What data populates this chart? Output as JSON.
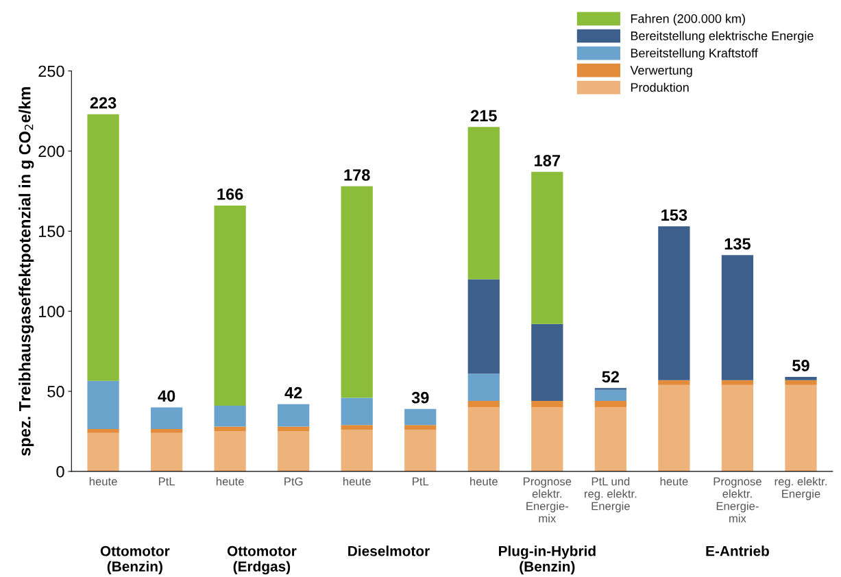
{
  "chart_data": {
    "type": "bar",
    "stacked": true,
    "ylabel": "spez. Treibhausgaseffektpotenzial in g CO$_{2}$e/km",
    "categories": [
      "heute",
      "PtL",
      "heute",
      "PtG",
      "heute",
      "PtL",
      "heute",
      "Prognose\nelektr.\nEnergie-\nmix",
      "PtL und\nreg. elektr.\nEnergie",
      "heute",
      "Prognose\nelektr.\nEnergie-\nmix",
      "reg. elektr.\nEnergie"
    ],
    "series": [
      {
        "name": "Produktion",
        "color": "#eeb37a",
        "values": [
          24,
          24,
          25,
          25,
          26,
          26,
          40,
          40,
          40,
          54,
          54,
          54
        ]
      },
      {
        "name": "Verwertung",
        "color": "#e38c3a",
        "values": [
          2.5,
          2.5,
          3,
          3,
          3,
          3,
          4,
          4,
          4,
          3,
          3,
          3
        ]
      },
      {
        "name": "Bereitstellung Kraftstoff",
        "color": "#6aa3cc",
        "values": [
          30,
          13.5,
          13,
          14,
          17,
          10,
          17,
          null,
          7,
          null,
          null,
          null
        ]
      },
      {
        "name": "Bereitstellung elektrische Energie",
        "color": "#3d5f8c",
        "values": [
          null,
          null,
          null,
          null,
          null,
          null,
          59,
          48,
          1,
          96,
          78,
          2
        ]
      },
      {
        "name": "Fahren (200.000 km)",
        "color": "#8cbd3a",
        "values": [
          166.5,
          null,
          125,
          null,
          132,
          null,
          95,
          95,
          null,
          null,
          null,
          null
        ]
      }
    ],
    "totals": [
      "223",
      "40",
      "166",
      "42",
      "178",
      "39",
      "215",
      "187",
      "52",
      "153",
      "135",
      "59"
    ],
    "annotations": [
      "Ottomotor\n(Benzin)",
      "Ottomotor\n(Erdgas)",
      "Dieselmotor",
      "Plug-in-Hybrid\n(Benzin)",
      "E-Antrieb"
    ],
    "ylim": [
      0,
      250
    ],
    "yticks": [
      0,
      50,
      100,
      150,
      200,
      250
    ],
    "grid": false,
    "legend": "top right"
  }
}
